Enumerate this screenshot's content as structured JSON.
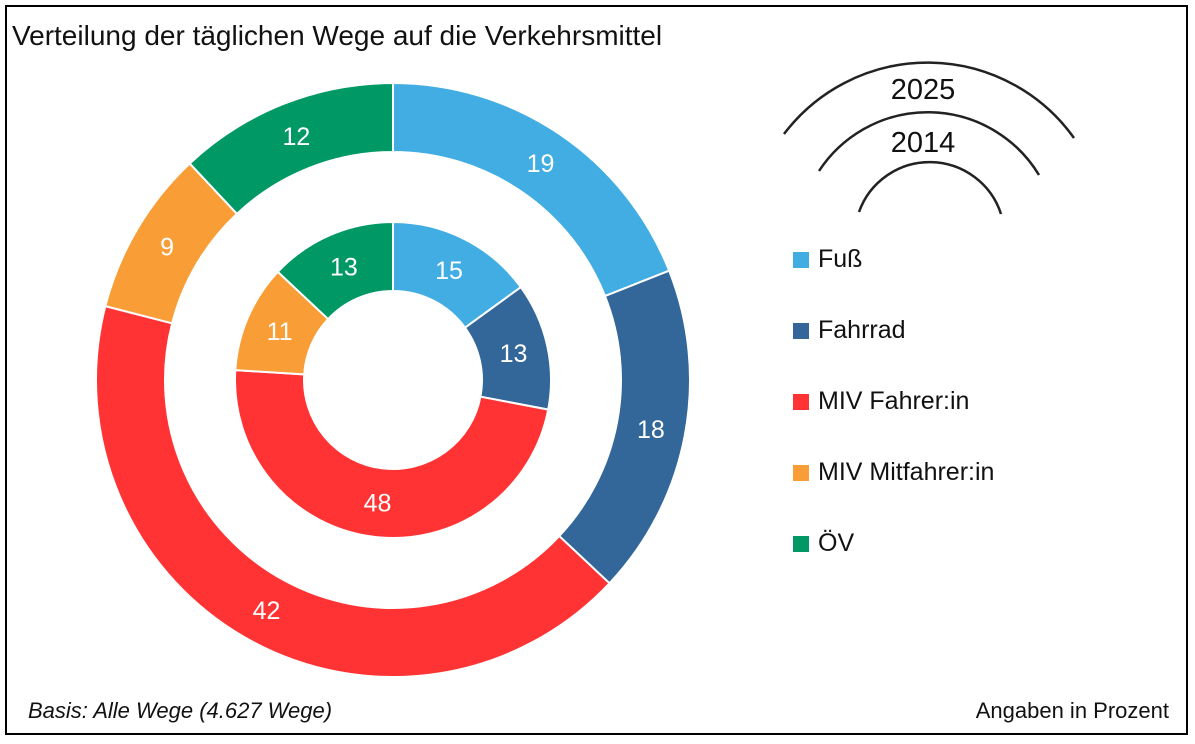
{
  "chart_data": {
    "type": "pie",
    "variant": "double-donut",
    "title": "Verteilung der täglichen Wege auf die Verkehrsmittel",
    "categories": [
      "Fuß",
      "Fahrrad",
      "MIV Fahrer:in",
      "MIV Mitfahrer:in",
      "ÖV"
    ],
    "colors": [
      "#41ADE3",
      "#336699",
      "#FF3333",
      "#F99D36",
      "#009966"
    ],
    "series": [
      {
        "name": "2025",
        "ring": "outer",
        "values": [
          19,
          18,
          42,
          9,
          12
        ]
      },
      {
        "name": "2014",
        "ring": "inner",
        "values": [
          15,
          13,
          48,
          11,
          13
        ]
      }
    ],
    "start_angle": "12 o'clock, clockwise",
    "legend_placement": "right",
    "footnote_left": "Basis: Alle Wege (4.627 Wege)",
    "footnote_right": "Angaben in Prozent"
  }
}
